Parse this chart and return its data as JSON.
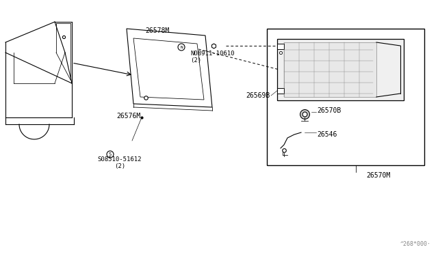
{
  "bg_color": "#ffffff",
  "line_color": "#000000",
  "light_gray": "#aaaaaa",
  "diagram_color": "#111111",
  "box_bg": "#ffffff",
  "fig_width": 6.4,
  "fig_height": 3.72,
  "dpi": 100,
  "watermark": "^268*000·",
  "parts": {
    "S_label": "S08510-51612\n(2)",
    "p26576M": "26576M",
    "p26578M": "26578M",
    "N_label": "N08911-10610\n(2)",
    "p26570M": "26570M",
    "p26546": "26546",
    "p26570B": "26570B",
    "p26569B": "26569B"
  }
}
